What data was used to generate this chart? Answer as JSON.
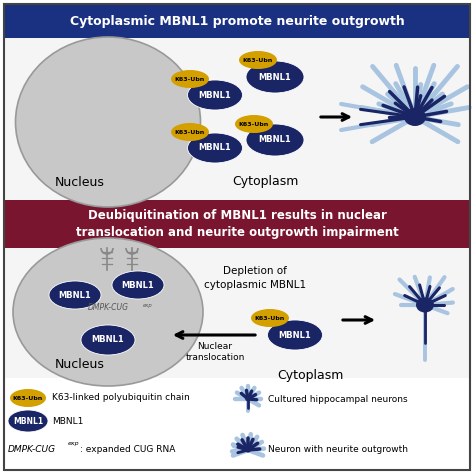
{
  "title_top": "Cytoplasmic MBNL1 promote neurite outgrowth",
  "title_mid": "Deubiquitination of MBNL1 results in nuclear\ntranslocation and neurite outgrowth impairment",
  "top_banner_color": "#1a3080",
  "mid_banner_color": "#7a1530",
  "bg_color": "#ffffff",
  "panel_bg": "#f5f5f5",
  "nucleus_color": "#c8c8c8",
  "nucleus_border": "#999999",
  "mbnl1_color": "#1a2565",
  "k63_color": "#d4a000",
  "neuron_light": "#a8c4e0",
  "neuron_dark": "#1a2565",
  "legend_k63_text": "K63-linked polyubiquitin chain",
  "legend_mbnl1_text": "MBNL1",
  "legend_dmpk_text": "DMPK-CUG",
  "legend_dmpk_sup": "exp",
  "legend_dmpk_rest": ": expanded CUG RNA",
  "legend_neuron1_text": "Cultured hippocampal neurons",
  "legend_neuron2_text": "Neuron with neurite outgrowth",
  "cytoplasm_label": "Cytoplasm",
  "nucleus_label": "Nucleus",
  "depletion_text": "Depletion of\ncytoplasmic MBNL1",
  "nuclear_trans_text": "Nuclear\ntranslocation",
  "outer_border": "#444444",
  "figsize": [
    4.74,
    4.74
  ],
  "dpi": 100
}
